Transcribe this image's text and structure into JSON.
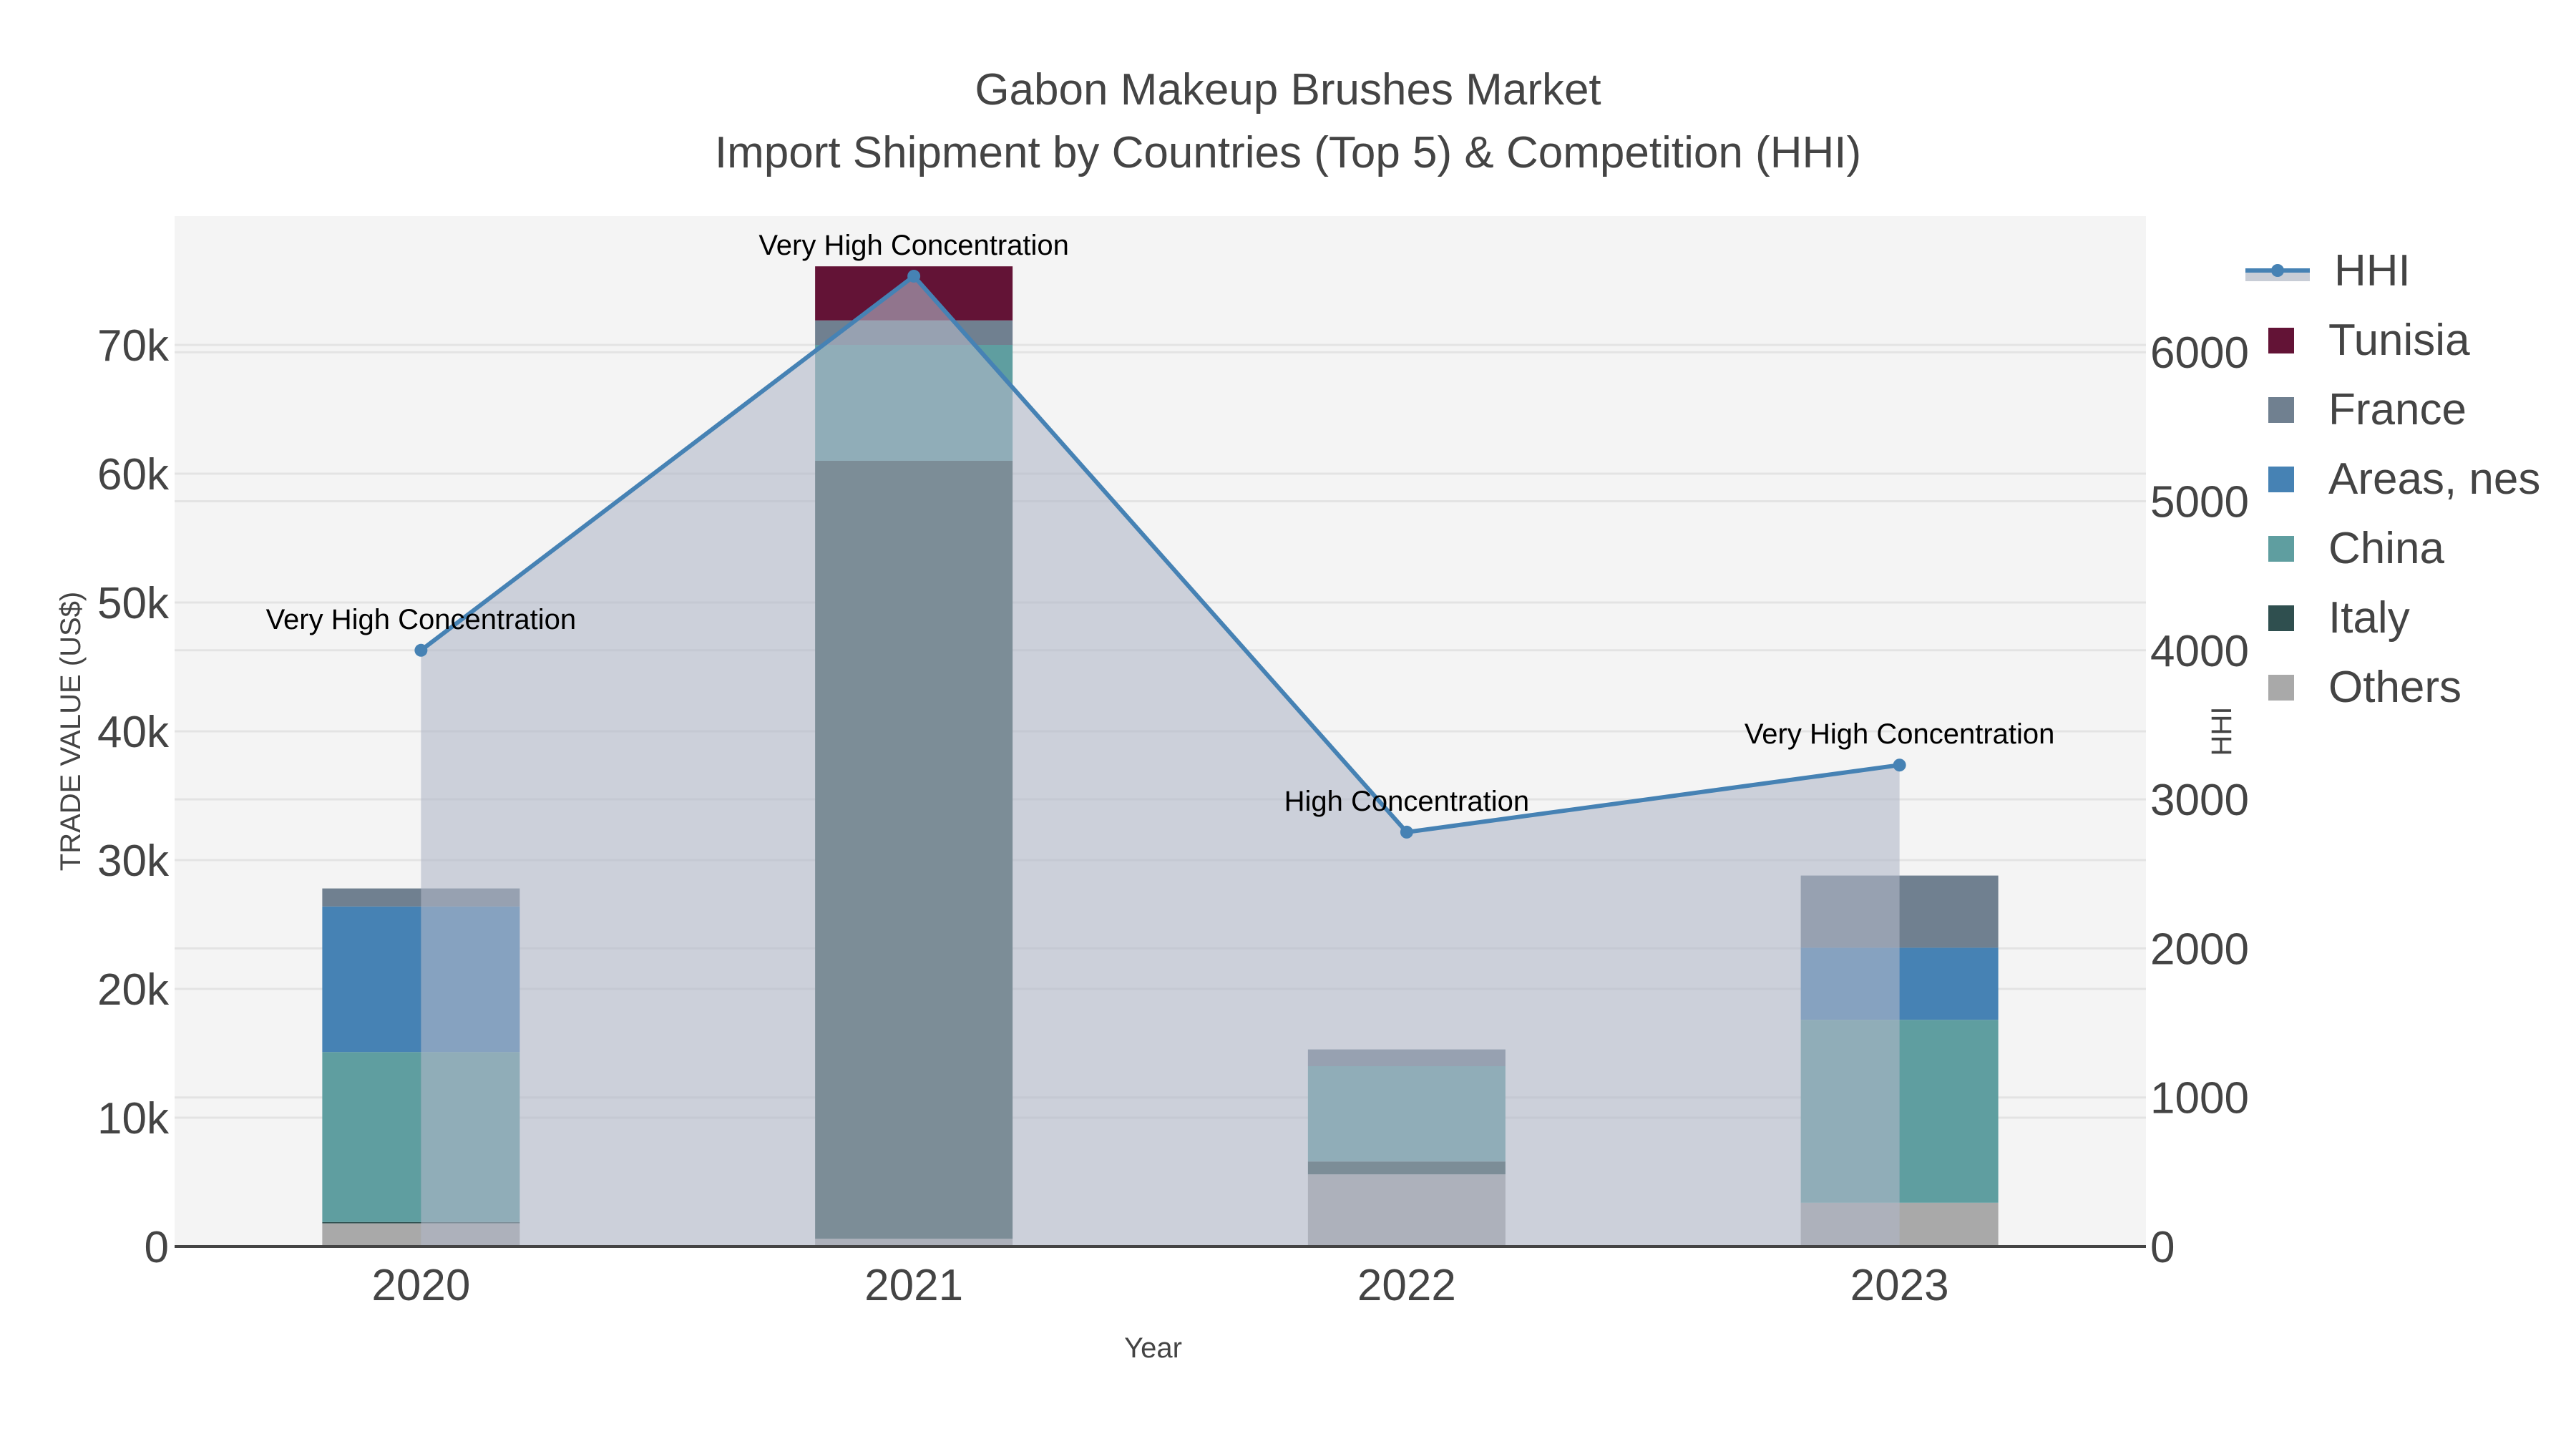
{
  "title": {
    "line1": "Gabon Makeup Brushes Market",
    "line2": "Import Shipment by Countries (Top 5) & Competition (HHI)"
  },
  "axes": {
    "x_title": "Year",
    "y_left_title": "TRADE VALUE (US$)",
    "y_right_title": "HHI",
    "y_left_ticks": [
      "0",
      "10k",
      "20k",
      "30k",
      "40k",
      "50k",
      "60k",
      "70k"
    ],
    "y_right_ticks": [
      "0",
      "1000",
      "2000",
      "3000",
      "4000",
      "5000",
      "6000"
    ],
    "x_ticks": [
      "2020",
      "2021",
      "2022",
      "2023"
    ]
  },
  "legend": [
    {
      "name": "HHI",
      "type": "line",
      "color": "#4682b4"
    },
    {
      "name": "Tunisia",
      "type": "bar",
      "color": "#631336"
    },
    {
      "name": "France",
      "type": "bar",
      "color": "#708090"
    },
    {
      "name": "Areas, nes",
      "type": "bar",
      "color": "#4682b4"
    },
    {
      "name": "China",
      "type": "bar",
      "color": "#5f9ea0"
    },
    {
      "name": "Italy",
      "type": "bar",
      "color": "#2f4f4f"
    },
    {
      "name": "Others",
      "type": "bar",
      "color": "#a9a9a9"
    }
  ],
  "chart_data": {
    "type": "bar",
    "title": "Gabon Makeup Brushes Market - Import Shipment by Countries (Top 5) & Competition (HHI)",
    "xlabel": "Year",
    "ylabel": "TRADE VALUE (US$)",
    "y2label": "HHI",
    "barmode": "stack",
    "categories": [
      "2020",
      "2021",
      "2022",
      "2023"
    ],
    "ylim": [
      0,
      79000
    ],
    "y2lim": [
      0,
      6900
    ],
    "grid": true,
    "legend_position": "right",
    "series": [
      {
        "name": "Others",
        "color": "#a9a9a9",
        "values": [
          1800,
          600,
          5600,
          3400
        ]
      },
      {
        "name": "Italy",
        "color": "#2f4f4f",
        "values": [
          100,
          60400,
          1000,
          0
        ]
      },
      {
        "name": "China",
        "color": "#5f9ea0",
        "values": [
          13200,
          9000,
          7400,
          14200
        ]
      },
      {
        "name": "Areas, nes",
        "color": "#4682b4",
        "values": [
          11300,
          0,
          0,
          5600
        ]
      },
      {
        "name": "France",
        "color": "#708090",
        "values": [
          1400,
          1900,
          1300,
          5600
        ]
      },
      {
        "name": "Tunisia",
        "color": "#631336",
        "values": [
          0,
          4200,
          0,
          0
        ]
      }
    ],
    "line_series": {
      "name": "HHI",
      "axis": "y2",
      "color": "#4682b4",
      "fill": "tozeroy",
      "fill_color": "rgba(160,170,190,0.5)",
      "values": [
        4000,
        6510,
        2780,
        3230
      ]
    },
    "annotations": [
      {
        "x": "2020",
        "text": "Very High Concentration"
      },
      {
        "x": "2021",
        "text": "Very High Concentration"
      },
      {
        "x": "2022",
        "text": "High Concentration"
      },
      {
        "x": "2023",
        "text": "Very High Concentration"
      }
    ]
  }
}
